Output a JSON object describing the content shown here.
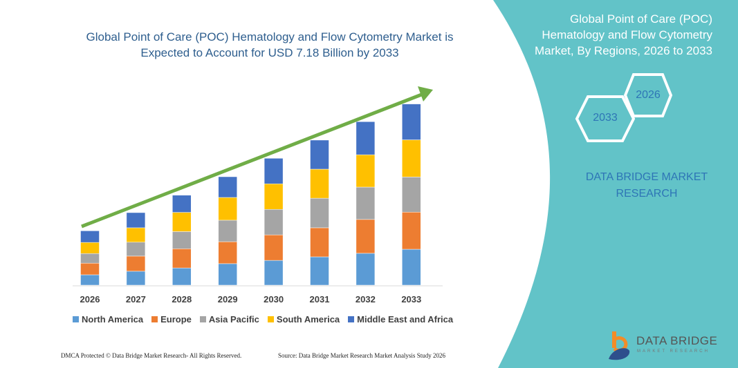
{
  "title": "Global Point of Care (POC) Hematology and Flow Cytometry Market is Expected to Account for USD 7.18 Billion by 2033",
  "side_panel": {
    "title": "Global Point of Care (POC) Hematology and Flow Cytometry Market, By Regions, 2026 to 2033",
    "hex_start": "2026",
    "hex_end": "2033",
    "brand": "DATA BRIDGE MARKET RESEARCH",
    "color": "#62C3C8"
  },
  "footer": {
    "copyright": "DMCA Protected © Data Bridge Market Research- All Rights Reserved.",
    "source": "Source: Data Bridge Market Research Market Analysis Study 2026"
  },
  "logo": {
    "name": "DATA BRIDGE",
    "sub": "MARKET RESEARCH"
  },
  "chart_data": {
    "type": "bar",
    "stacked": true,
    "categories": [
      "2026",
      "2027",
      "2028",
      "2029",
      "2030",
      "2031",
      "2032",
      "2033"
    ],
    "series": [
      {
        "name": "North America",
        "color": "#5B9BD5",
        "values": [
          0.41,
          0.55,
          0.68,
          0.85,
          0.98,
          1.12,
          1.26,
          1.42
        ]
      },
      {
        "name": "Europe",
        "color": "#ED7D31",
        "values": [
          0.46,
          0.6,
          0.76,
          0.87,
          1.01,
          1.15,
          1.34,
          1.47
        ]
      },
      {
        "name": "Asia Pacific",
        "color": "#A5A5A5",
        "values": [
          0.38,
          0.55,
          0.68,
          0.85,
          1.01,
          1.17,
          1.28,
          1.39
        ]
      },
      {
        "name": "South America",
        "color": "#FFC000",
        "values": [
          0.44,
          0.57,
          0.76,
          0.9,
          1.01,
          1.15,
          1.28,
          1.47
        ]
      },
      {
        "name": "Middle East and Africa",
        "color": "#4472C4",
        "values": [
          0.46,
          0.6,
          0.68,
          0.82,
          1.01,
          1.15,
          1.31,
          1.42
        ]
      }
    ],
    "trend_arrow_color": "#70AD47",
    "legend_position": "bottom",
    "grid": false,
    "xlabel": "",
    "ylabel": ""
  }
}
